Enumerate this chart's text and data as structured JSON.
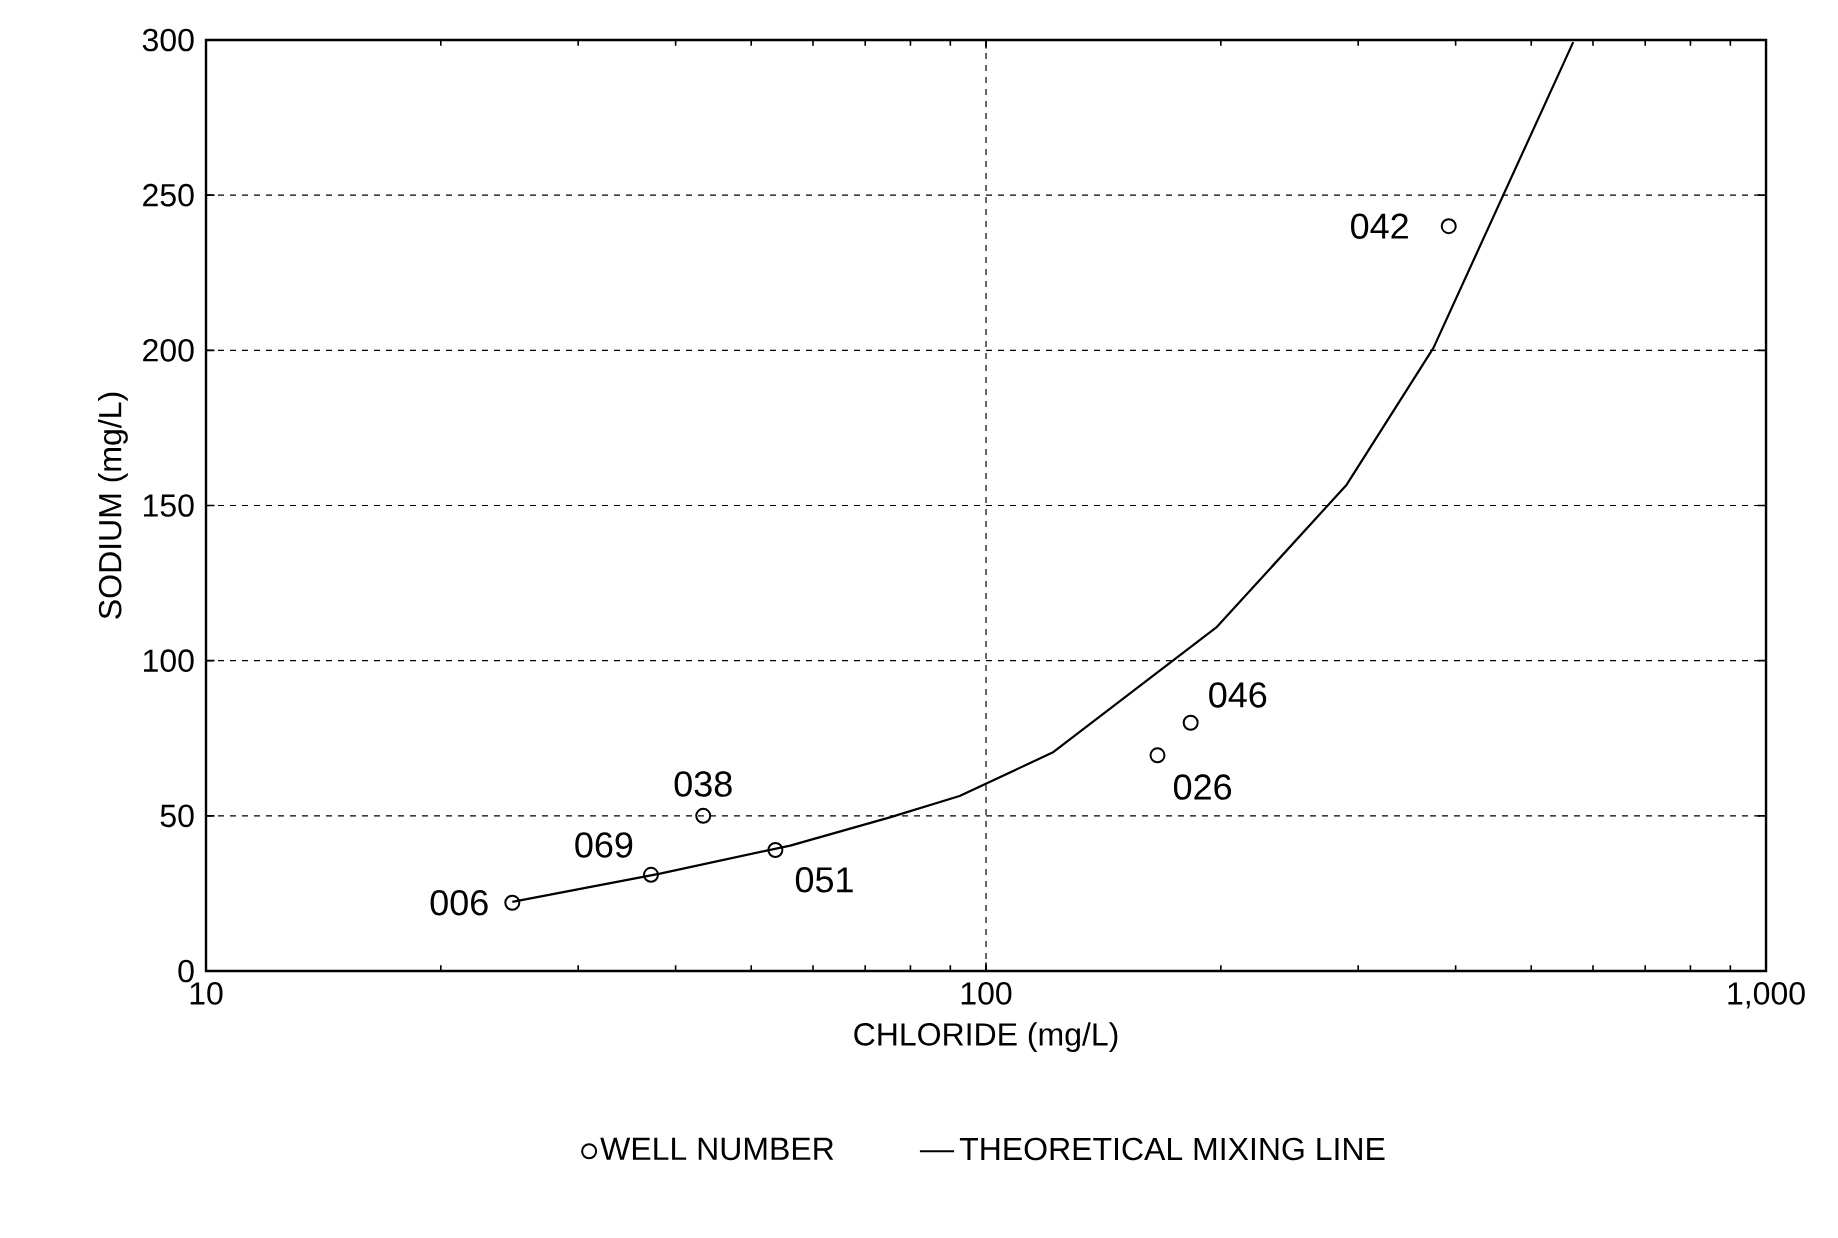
{
  "chart_data": {
    "type": "scatter",
    "xlabel": "CHLORIDE (mg/L)",
    "ylabel": "SODIUM (mg/L)",
    "log": "x",
    "xlim": [
      10,
      1000
    ],
    "ylim": [
      0,
      300
    ],
    "xticks": [
      10,
      100,
      {
        "value": 1000,
        "label": "1,000"
      }
    ],
    "yticks": [
      0,
      50,
      100,
      150,
      200,
      250,
      300
    ],
    "grid": true,
    "legend": "bottom",
    "marker": "circle",
    "series": [
      {
        "name": "WELL NUMBER",
        "color": "#000000",
        "x": [
          24.7,
          37.2,
          43.4,
          53.7,
          165.9,
          183,
          392
        ],
        "values": [
          22,
          31,
          50,
          39,
          69.5,
          80,
          240
        ]
      },
      {
        "name": "THEORETICAL MIXING LINE",
        "type": "line",
        "color": "#000000",
        "marker": "none",
        "line_style": "solid",
        "x": [
          24.7,
          38.2,
          56.1,
          75.3,
          92.5,
          121.7,
          197.8,
          290,
          374.7,
          566
        ],
        "values": [
          22.3,
          31.4,
          40.4,
          49.5,
          56.4,
          70.4,
          110.9,
          156.7,
          200.8,
          299.3
        ]
      }
    ],
    "annotations": [
      {
        "text": "006",
        "x": 24.7,
        "y": 22
      },
      {
        "text": "069",
        "x": 37.2,
        "y": 31
      },
      {
        "text": "038",
        "x": 43.4,
        "y": 50
      },
      {
        "text": "051",
        "x": 53.7,
        "y": 39
      },
      {
        "text": "026",
        "x": 165.9,
        "y": 69.5
      },
      {
        "text": "046",
        "x": 183,
        "y": 80
      },
      {
        "text": "042",
        "x": 392,
        "y": 240
      }
    ]
  }
}
